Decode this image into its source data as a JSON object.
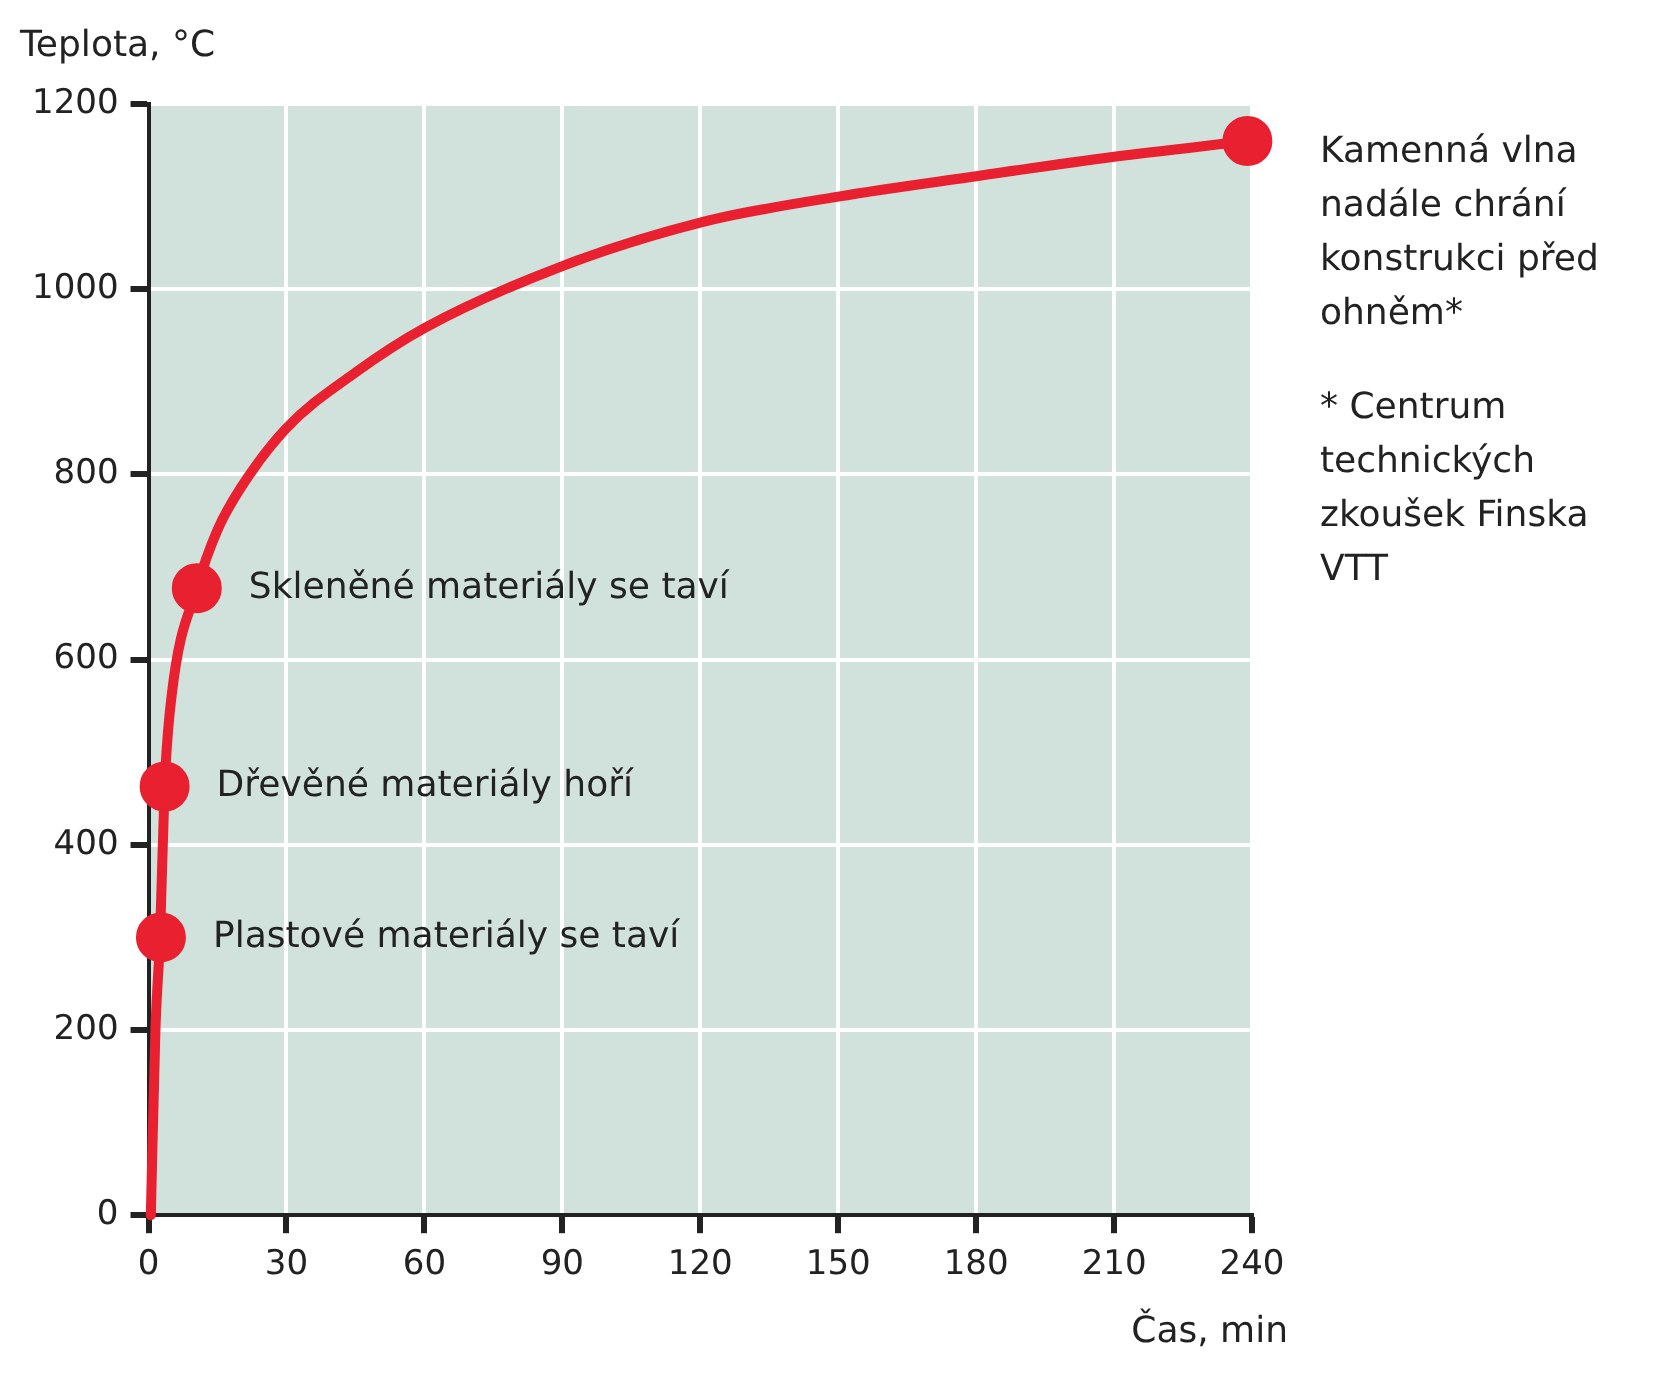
{
  "chart_data": {
    "type": "line",
    "xlabel": "Čas, min",
    "ylabel": "Teplota, °C",
    "xlim": [
      0,
      240
    ],
    "xticks": [
      0,
      30,
      60,
      90,
      120,
      150,
      180,
      210,
      240
    ],
    "ylim": [
      0,
      1200
    ],
    "yticks": [
      0,
      200,
      400,
      600,
      800,
      1000,
      1200
    ],
    "grid": true,
    "series": [
      {
        "type": "line",
        "color": "#e8202f",
        "marker": "none",
        "x": [
          0.5,
          1.5,
          2.5,
          3.5,
          5,
          10.5,
          15,
          20,
          30,
          45,
          60,
          90,
          120,
          150,
          180,
          210,
          239
        ],
        "values": [
          0,
          200,
          300,
          463,
          560,
          677,
          740,
          785,
          850,
          910,
          958,
          1025,
          1072,
          1100,
          1122,
          1143,
          1160
        ]
      },
      {
        "type": "scatter",
        "color": "#e8202f",
        "marker": "circle",
        "x": [
          2.7,
          3.5,
          10.5,
          239
        ],
        "values": [
          300,
          463,
          677,
          1160
        ]
      }
    ],
    "annotations": [
      {
        "text": "Plastové materiály se taví",
        "x": 2.7,
        "y": 300
      },
      {
        "text": "Dřevěné materiály hoří",
        "x": 3.5,
        "y": 463
      },
      {
        "text": "Skleněné materiály se taví",
        "x": 10.5,
        "y": 677
      },
      "Kamenná vlna nadále chrání konstrukci před ohněm*",
      "* Centrum technických zkoušek Finska VTT"
    ]
  }
}
